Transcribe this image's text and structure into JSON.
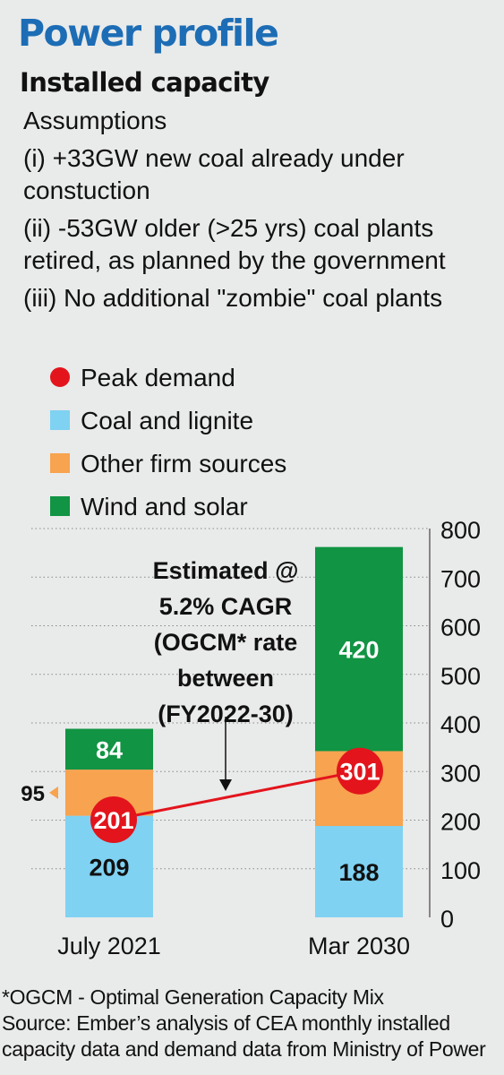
{
  "title": "Power profile",
  "subtitle": "Installed capacity",
  "assumptions": {
    "heading": "Assumptions",
    "items": [
      "(i) +33GW new coal already under constuction",
      "(ii) -53GW older (>25 yrs) coal plants retired, as planned by the government",
      "(iii) No additional \"zombie\" coal plants"
    ]
  },
  "legend": [
    {
      "label": "Peak demand",
      "color": "#e3141c",
      "shape": "dot"
    },
    {
      "label": "Coal and lignite",
      "color": "#7fd2f2",
      "shape": "square"
    },
    {
      "label": "Other firm sources",
      "color": "#f7a34f",
      "shape": "square"
    },
    {
      "label": "Wind and solar",
      "color": "#119443",
      "shape": "square"
    }
  ],
  "chart_data": {
    "type": "bar",
    "stacked": true,
    "categories": [
      "July 2021",
      "Mar 2030"
    ],
    "series": [
      {
        "name": "Coal and lignite",
        "color": "#7fd2f2",
        "values": [
          209,
          188
        ],
        "labels": [
          "209",
          "188"
        ]
      },
      {
        "name": "Other firm sources",
        "color": "#f7a34f",
        "values": [
          95,
          154
        ],
        "labels": [
          "95",
          ""
        ]
      },
      {
        "name": "Wind and solar",
        "color": "#119443",
        "values": [
          84,
          420
        ],
        "labels": [
          "84",
          "420"
        ]
      }
    ],
    "peak_demand": {
      "name": "Peak demand",
      "color": "#e3141c",
      "values": [
        201,
        301
      ],
      "labels": [
        "201",
        "301"
      ]
    },
    "ylim": [
      0,
      800
    ],
    "yticks": [
      0,
      100,
      200,
      300,
      400,
      500,
      600,
      700,
      800
    ],
    "grid": true,
    "annotation": "Estimated @ 5.2% CAGR (OGCM* rate between (FY2022-30)"
  },
  "footnote": {
    "note": "*OGCM - Optimal Generation Capacity Mix",
    "source": "Source: Ember’s analysis of CEA monthly installed capacity data and demand data from Ministry of Power"
  }
}
